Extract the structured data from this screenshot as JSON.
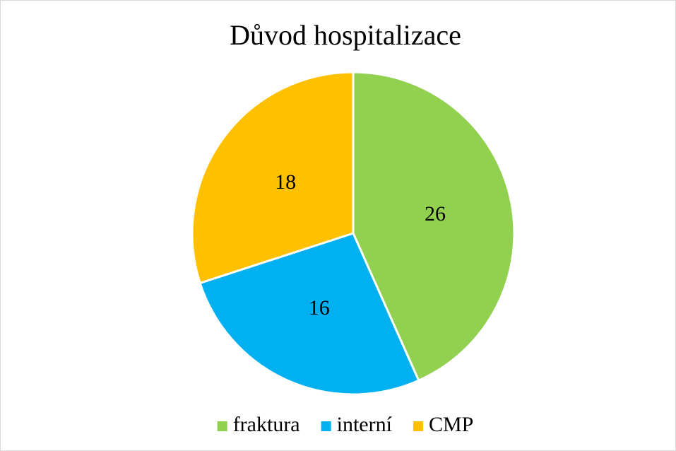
{
  "chart_data": {
    "type": "pie",
    "title": "Důvod hospitalizace",
    "categories": [
      "fraktura",
      "interní",
      "CMP"
    ],
    "values": [
      26,
      16,
      18
    ],
    "colors": [
      "#92d050",
      "#00b0f0",
      "#ffc000"
    ],
    "legend": "bottom"
  }
}
